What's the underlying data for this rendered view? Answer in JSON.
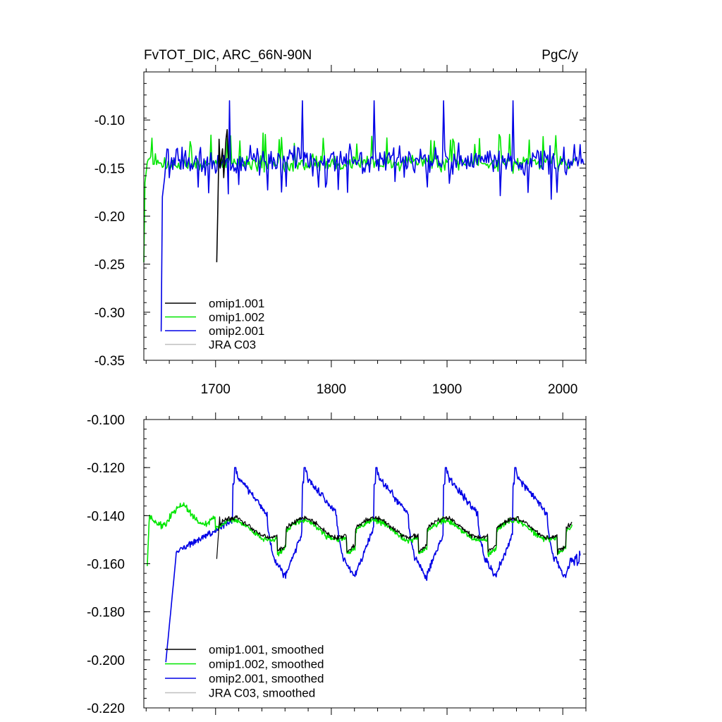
{
  "header": {
    "title_left": "FvTOT_DIC, ARC_66N-90N",
    "title_right": "PgC/y"
  },
  "colors": {
    "omip1_001": "#000000",
    "omip1_002": "#00e600",
    "omip2_001": "#0000e6",
    "jra_c03": "#bfbfbf"
  },
  "chart_data": [
    {
      "type": "line",
      "title": "FvTOT_DIC, ARC_66N-90N",
      "units": "PgC/y",
      "xlim": [
        1638,
        2020
      ],
      "ylim": [
        -0.35,
        -0.05
      ],
      "x_ticks": [
        1700,
        1800,
        1900,
        2000
      ],
      "y_ticks": [
        -0.35,
        -0.3,
        -0.25,
        -0.2,
        -0.15,
        -0.1
      ],
      "y_tick_labels": [
        "-0.35",
        "-0.30",
        "-0.25",
        "-0.20",
        "-0.15",
        "-0.10"
      ],
      "x_tick_labels": [
        "1700",
        "1800",
        "1900",
        "2000"
      ],
      "legend": [
        "omip1.001",
        "omip1.002",
        "omip2.001",
        "JRA C03"
      ],
      "legend_position": "bottom-left",
      "series": [
        {
          "name": "omip1.001",
          "key": "omip1_001",
          "x_start": 1701,
          "x_end": 1711,
          "values": [
            -0.248,
            -0.19,
            -0.12,
            -0.15,
            -0.14,
            -0.13,
            -0.16,
            -0.14,
            -0.12,
            -0.11,
            -0.14
          ]
        },
        {
          "name": "omip1.002",
          "key": "omip1_002",
          "x_start": 1638,
          "x_end": 2010,
          "mean": -0.145,
          "amplitude": 0.012,
          "spin_up_start": -0.248
        },
        {
          "name": "omip2.001",
          "key": "omip2_001",
          "x_start": 1653,
          "x_end": 2018,
          "mean": -0.142,
          "amplitude": 0.02,
          "spin_up_start": -0.32
        },
        {
          "name": "JRA C03",
          "key": "jra_c03",
          "values": []
        }
      ]
    },
    {
      "type": "line",
      "xlim": [
        1638,
        2020
      ],
      "ylim": [
        -0.22,
        -0.1
      ],
      "x_ticks": [
        1700,
        1800,
        1900,
        2000
      ],
      "y_ticks": [
        -0.22,
        -0.2,
        -0.18,
        -0.16,
        -0.14,
        -0.12,
        -0.1
      ],
      "y_tick_labels": [
        "-0.220",
        "-0.200",
        "-0.180",
        "-0.160",
        "-0.140",
        "-0.120",
        "-0.100"
      ],
      "legend": [
        "omip1.001, smoothed",
        "omip1.002, smoothed",
        "omip2.001, smoothed",
        "JRA C03, smoothed"
      ],
      "legend_position": "bottom-left",
      "cycle_starts": [
        1653,
        1715,
        1775,
        1837,
        1897,
        1957
      ],
      "series": [
        {
          "name": "omip1.001, smoothed",
          "key": "omip1_001",
          "x_start": 1701,
          "x_end": 2008
        },
        {
          "name": "omip1.002, smoothed",
          "key": "omip1_002",
          "x_start": 1641,
          "x_end": 2008
        },
        {
          "name": "omip2.001, smoothed",
          "key": "omip2_001",
          "x_start": 1657,
          "x_end": 2015
        },
        {
          "name": "JRA C03, smoothed",
          "key": "jra_c03",
          "values": []
        }
      ]
    }
  ]
}
